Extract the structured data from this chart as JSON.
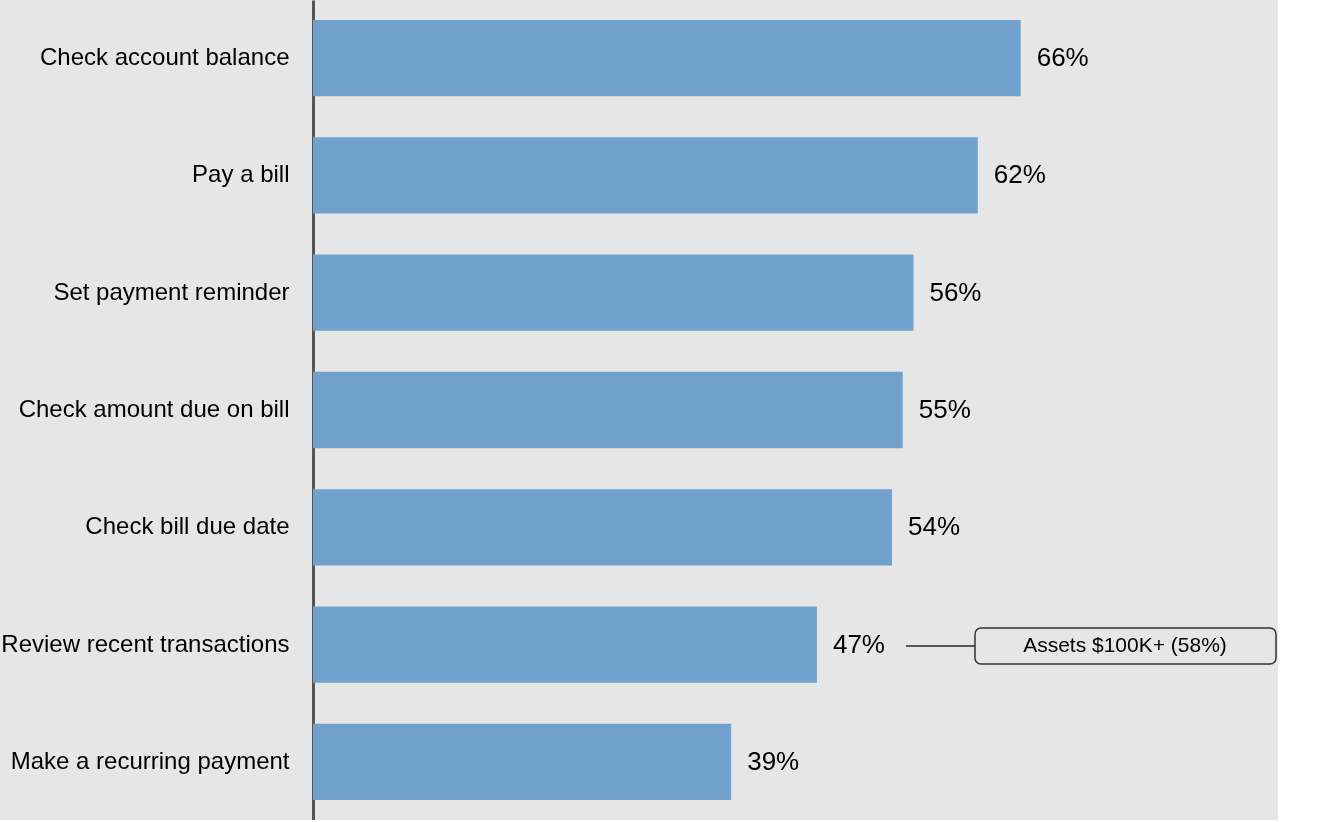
{
  "chart_data": {
    "type": "bar",
    "orientation": "horizontal",
    "categories": [
      "Check account balance",
      "Pay a bill",
      "Set payment reminder",
      "Check amount due on bill",
      "Check bill due date",
      "Review recent transactions",
      "Make a recurring payment"
    ],
    "values": [
      66,
      62,
      56,
      55,
      54,
      47,
      39
    ],
    "color": "#71a1cd",
    "value_labels": [
      "66%",
      "62%",
      "56%",
      "55%",
      "54%",
      "47%",
      "39%"
    ],
    "xlim": [
      0,
      90
    ],
    "tick_labels": "y",
    "annotations": [
      "Assets $100K+ (58%)"
    ]
  }
}
